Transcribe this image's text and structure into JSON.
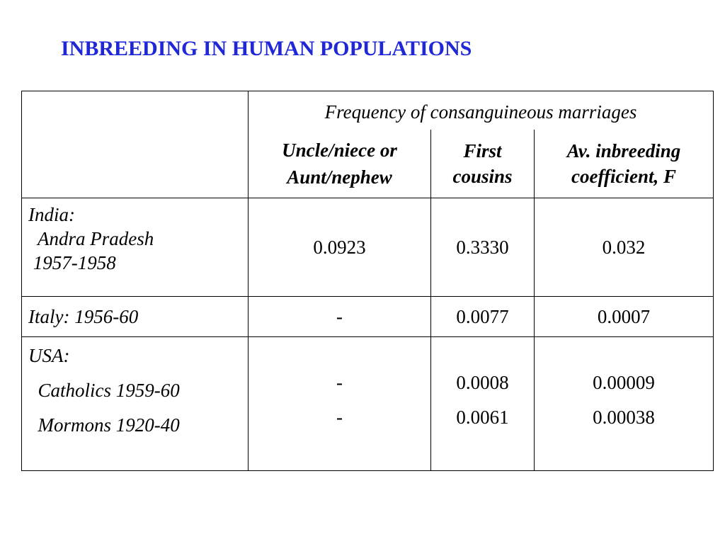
{
  "title": "INBREEDING IN HUMAN POPULATIONS",
  "table": {
    "group_header": "Frequency of consanguineous marriages",
    "columns": [
      [
        "Uncle/niece or",
        "Aunt/nephew"
      ],
      [
        "First",
        "cousins"
      ],
      [
        "Av. inbreeding",
        "coefficient, F"
      ]
    ],
    "rows": [
      {
        "label": [
          "India:",
          "  Andra Pradesh",
          " 1957-1958"
        ],
        "uncle_niece": [
          "0.0923"
        ],
        "first_cousins": [
          "0.3330"
        ],
        "inbreeding_F": [
          "0.032"
        ]
      },
      {
        "label": [
          "Italy: 1956-60"
        ],
        "uncle_niece": [
          "-"
        ],
        "first_cousins": [
          "0.0077"
        ],
        "inbreeding_F": [
          "0.0007"
        ]
      },
      {
        "label": [
          "USA:",
          "  Catholics 1959-60",
          "  Mormons 1920-40"
        ],
        "uncle_niece": [
          "-",
          "-"
        ],
        "first_cousins": [
          "0.0008",
          "0.0061"
        ],
        "inbreeding_F": [
          "0.00009",
          "0.00038"
        ]
      }
    ]
  },
  "colors": {
    "title": "#1f27d6",
    "subheader": "#1f27d6",
    "group_header": "#2a7d2a",
    "row_labels": "#2a7d2a"
  }
}
